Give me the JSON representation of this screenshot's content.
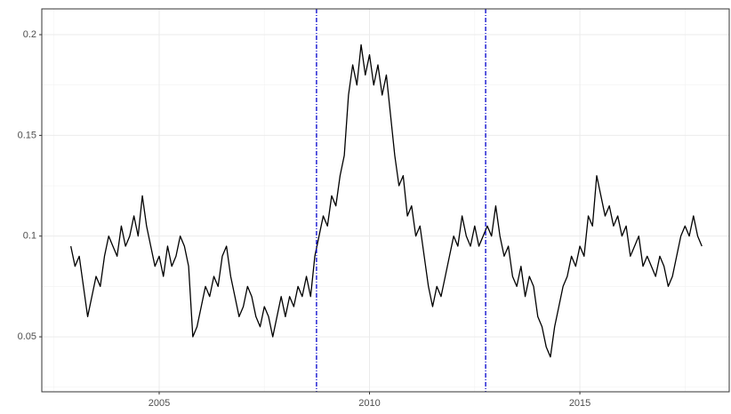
{
  "chart_data": {
    "type": "line",
    "x": [
      2002.9,
      2003.0,
      2003.1,
      2003.2,
      2003.3,
      2003.4,
      2003.5,
      2003.6,
      2003.7,
      2003.8,
      2003.9,
      2004.0,
      2004.1,
      2004.2,
      2004.3,
      2004.4,
      2004.5,
      2004.6,
      2004.7,
      2004.8,
      2004.9,
      2005.0,
      2005.1,
      2005.2,
      2005.3,
      2005.4,
      2005.5,
      2005.6,
      2005.7,
      2005.8,
      2005.9,
      2006.0,
      2006.1,
      2006.2,
      2006.3,
      2006.4,
      2006.5,
      2006.6,
      2006.7,
      2006.8,
      2006.9,
      2007.0,
      2007.1,
      2007.2,
      2007.3,
      2007.4,
      2007.5,
      2007.6,
      2007.7,
      2007.8,
      2007.9,
      2008.0,
      2008.1,
      2008.2,
      2008.3,
      2008.4,
      2008.5,
      2008.6,
      2008.7,
      2008.8,
      2008.9,
      2009.0,
      2009.1,
      2009.2,
      2009.3,
      2009.4,
      2009.5,
      2009.6,
      2009.7,
      2009.8,
      2009.9,
      2010.0,
      2010.1,
      2010.2,
      2010.3,
      2010.4,
      2010.5,
      2010.6,
      2010.7,
      2010.8,
      2010.9,
      2011.0,
      2011.1,
      2011.2,
      2011.3,
      2011.4,
      2011.5,
      2011.6,
      2011.7,
      2011.8,
      2011.9,
      2012.0,
      2012.1,
      2012.2,
      2012.3,
      2012.4,
      2012.5,
      2012.6,
      2012.7,
      2012.8,
      2012.9,
      2013.0,
      2013.1,
      2013.2,
      2013.3,
      2013.4,
      2013.5,
      2013.6,
      2013.7,
      2013.8,
      2013.9,
      2014.0,
      2014.1,
      2014.2,
      2014.3,
      2014.4,
      2014.5,
      2014.6,
      2014.7,
      2014.8,
      2014.9,
      2015.0,
      2015.1,
      2015.2,
      2015.3,
      2015.4,
      2015.5,
      2015.6,
      2015.7,
      2015.8,
      2015.9,
      2016.0,
      2016.1,
      2016.2,
      2016.3,
      2016.4,
      2016.5,
      2016.6,
      2016.7,
      2016.8,
      2016.9,
      2017.0,
      2017.1,
      2017.2,
      2017.3,
      2017.4,
      2017.5,
      2017.6,
      2017.7,
      2017.8,
      2017.9
    ],
    "series": [
      {
        "color": "#000000",
        "values": [
          0.095,
          0.085,
          0.09,
          0.075,
          0.06,
          0.07,
          0.08,
          0.075,
          0.09,
          0.1,
          0.095,
          0.09,
          0.105,
          0.095,
          0.1,
          0.11,
          0.1,
          0.12,
          0.105,
          0.095,
          0.085,
          0.09,
          0.08,
          0.095,
          0.085,
          0.09,
          0.1,
          0.095,
          0.085,
          0.05,
          0.055,
          0.065,
          0.075,
          0.07,
          0.08,
          0.075,
          0.09,
          0.095,
          0.08,
          0.07,
          0.06,
          0.065,
          0.075,
          0.07,
          0.06,
          0.055,
          0.065,
          0.06,
          0.05,
          0.06,
          0.07,
          0.06,
          0.07,
          0.065,
          0.075,
          0.07,
          0.08,
          0.07,
          0.09,
          0.1,
          0.11,
          0.105,
          0.12,
          0.115,
          0.13,
          0.14,
          0.17,
          0.185,
          0.175,
          0.195,
          0.18,
          0.19,
          0.175,
          0.185,
          0.17,
          0.18,
          0.16,
          0.14,
          0.125,
          0.13,
          0.11,
          0.115,
          0.1,
          0.105,
          0.09,
          0.075,
          0.065,
          0.075,
          0.07,
          0.08,
          0.09,
          0.1,
          0.095,
          0.11,
          0.1,
          0.095,
          0.105,
          0.095,
          0.1,
          0.105,
          0.1,
          0.115,
          0.1,
          0.09,
          0.095,
          0.08,
          0.075,
          0.085,
          0.07,
          0.08,
          0.075,
          0.06,
          0.055,
          0.045,
          0.04,
          0.055,
          0.065,
          0.075,
          0.08,
          0.09,
          0.085,
          0.095,
          0.09,
          0.11,
          0.105,
          0.13,
          0.12,
          0.11,
          0.115,
          0.105,
          0.11,
          0.1,
          0.105,
          0.09,
          0.095,
          0.1,
          0.085,
          0.09,
          0.085,
          0.08,
          0.09,
          0.085,
          0.075,
          0.08,
          0.09,
          0.1,
          0.105,
          0.1,
          0.11,
          0.1,
          0.095
        ]
      }
    ],
    "xlim": [
      2002.21,
      2018.55
    ],
    "ylim": [
      0.0227,
      0.2128
    ],
    "xticks": [
      2005,
      2010,
      2015
    ],
    "yticks": [
      0.05,
      0.1,
      0.15,
      0.2
    ],
    "minor_xticks": [
      2002.5,
      2007.5,
      2012.5,
      2017.5
    ],
    "minor_yticks": [
      0.025,
      0.075,
      0.125,
      0.175
    ],
    "vlines": [
      2008.74,
      2012.76
    ],
    "vline_color": "#0000cc",
    "grid": true
  }
}
